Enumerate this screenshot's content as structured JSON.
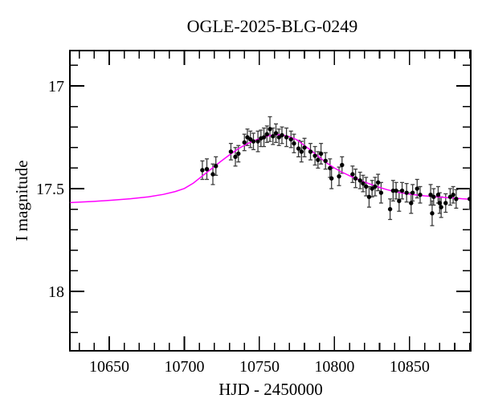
{
  "chart_data": {
    "type": "scatter",
    "title": "OGLE-2025-BLG-0249",
    "xlabel": "HJD - 2450000",
    "ylabel": "I magnitude",
    "xlim": [
      10623.8,
      10890.7
    ],
    "ylim": [
      16.828,
      18.289
    ],
    "y_axis_inverted": true,
    "grid": false,
    "legend": null,
    "x_major_ticks": [
      10650,
      10700,
      10750,
      10800,
      10850
    ],
    "x_major_tick_labels": [
      "10650",
      "10700",
      "10750",
      "10800",
      "10850"
    ],
    "x_minor_step": 10,
    "y_major_ticks": [
      17,
      17.5,
      18
    ],
    "y_major_tick_labels": [
      "17",
      "17.5",
      "18"
    ],
    "y_minor_step": 0.1,
    "colors": {
      "background": "#ffffff",
      "text": "#000000",
      "frame": "#000000",
      "model_curve": "#ff00ff",
      "data_points": "#000000",
      "error_bars": "#3c3c3c"
    },
    "series": [
      {
        "name": "model-light-curve",
        "kind": "line",
        "points": [
          [
            10624,
            17.568
          ],
          [
            10640,
            17.562
          ],
          [
            10652,
            17.556
          ],
          [
            10664,
            17.549
          ],
          [
            10676,
            17.54
          ],
          [
            10686,
            17.528
          ],
          [
            10694,
            17.514
          ],
          [
            10700,
            17.499
          ],
          [
            10706,
            17.473
          ],
          [
            10712,
            17.438
          ],
          [
            10718,
            17.404
          ],
          [
            10724,
            17.369
          ],
          [
            10730,
            17.336
          ],
          [
            10736,
            17.305
          ],
          [
            10742,
            17.281
          ],
          [
            10748,
            17.262
          ],
          [
            10753,
            17.249
          ],
          [
            10757,
            17.241
          ],
          [
            10761,
            17.237
          ],
          [
            10765,
            17.238
          ],
          [
            10770,
            17.247
          ],
          [
            10775,
            17.262
          ],
          [
            10780,
            17.29
          ],
          [
            10785,
            17.318
          ],
          [
            10790,
            17.348
          ],
          [
            10795,
            17.376
          ],
          [
            10800,
            17.4
          ],
          [
            10805,
            17.42
          ],
          [
            10810,
            17.437
          ],
          [
            10815,
            17.453
          ],
          [
            10820,
            17.468
          ],
          [
            10825,
            17.481
          ],
          [
            10830,
            17.494
          ],
          [
            10835,
            17.505
          ],
          [
            10840,
            17.514
          ],
          [
            10845,
            17.521
          ],
          [
            10850,
            17.527
          ],
          [
            10855,
            17.531
          ],
          [
            10860,
            17.535
          ],
          [
            10865,
            17.538
          ],
          [
            10870,
            17.541
          ],
          [
            10875,
            17.544
          ],
          [
            10880,
            17.546
          ],
          [
            10885,
            17.549
          ],
          [
            10891,
            17.552
          ]
        ]
      },
      {
        "name": "ogle-i-band-photometry",
        "kind": "scatter-with-errorbars",
        "points": [
          [
            10712,
            17.41,
            0.045
          ],
          [
            10715,
            17.405,
            0.05
          ],
          [
            10719,
            17.43,
            0.05
          ],
          [
            10721,
            17.39,
            0.045
          ],
          [
            10731,
            17.32,
            0.04
          ],
          [
            10734,
            17.345,
            0.045
          ],
          [
            10736,
            17.33,
            0.04
          ],
          [
            10740,
            17.275,
            0.04
          ],
          [
            10742,
            17.25,
            0.04
          ],
          [
            10744,
            17.26,
            0.04
          ],
          [
            10746,
            17.27,
            0.04
          ],
          [
            10749,
            17.27,
            0.05
          ],
          [
            10751,
            17.255,
            0.04
          ],
          [
            10753,
            17.25,
            0.045
          ],
          [
            10755,
            17.235,
            0.04
          ],
          [
            10757,
            17.21,
            0.06
          ],
          [
            10759,
            17.245,
            0.04
          ],
          [
            10761,
            17.23,
            0.045
          ],
          [
            10763,
            17.25,
            0.04
          ],
          [
            10765,
            17.24,
            0.04
          ],
          [
            10768,
            17.25,
            0.045
          ],
          [
            10771,
            17.26,
            0.04
          ],
          [
            10773,
            17.28,
            0.045
          ],
          [
            10776,
            17.305,
            0.04
          ],
          [
            10778,
            17.32,
            0.05
          ],
          [
            10780,
            17.3,
            0.045
          ],
          [
            10784,
            17.32,
            0.04
          ],
          [
            10787,
            17.34,
            0.045
          ],
          [
            10789,
            17.36,
            0.04
          ],
          [
            10791,
            17.33,
            0.05
          ],
          [
            10794,
            17.365,
            0.04
          ],
          [
            10797,
            17.4,
            0.045
          ],
          [
            10798,
            17.45,
            0.05
          ],
          [
            10803,
            17.44,
            0.045
          ],
          [
            10805,
            17.385,
            0.04
          ],
          [
            10812,
            17.43,
            0.04
          ],
          [
            10814,
            17.45,
            0.045
          ],
          [
            10817,
            17.46,
            0.04
          ],
          [
            10819,
            17.475,
            0.04
          ],
          [
            10821,
            17.49,
            0.045
          ],
          [
            10823,
            17.54,
            0.05
          ],
          [
            10825,
            17.5,
            0.04
          ],
          [
            10827,
            17.49,
            0.045
          ],
          [
            10829,
            17.47,
            0.04
          ],
          [
            10831,
            17.52,
            0.05
          ],
          [
            10837,
            17.6,
            0.05
          ],
          [
            10839,
            17.51,
            0.05
          ],
          [
            10841,
            17.51,
            0.04
          ],
          [
            10843,
            17.56,
            0.05
          ],
          [
            10845,
            17.51,
            0.04
          ],
          [
            10848,
            17.52,
            0.045
          ],
          [
            10851,
            17.57,
            0.05
          ],
          [
            10852,
            17.52,
            0.04
          ],
          [
            10855,
            17.5,
            0.045
          ],
          [
            10857,
            17.53,
            0.04
          ],
          [
            10864,
            17.53,
            0.05
          ],
          [
            10865,
            17.62,
            0.06
          ],
          [
            10866,
            17.54,
            0.04
          ],
          [
            10869,
            17.53,
            0.04
          ],
          [
            10870,
            17.57,
            0.05
          ],
          [
            10871,
            17.59,
            0.05
          ],
          [
            10874,
            17.57,
            0.045
          ],
          [
            10877,
            17.54,
            0.04
          ],
          [
            10879,
            17.53,
            0.04
          ],
          [
            10881,
            17.55,
            0.045
          ],
          [
            10890,
            17.55,
            0.05
          ]
        ]
      }
    ]
  }
}
